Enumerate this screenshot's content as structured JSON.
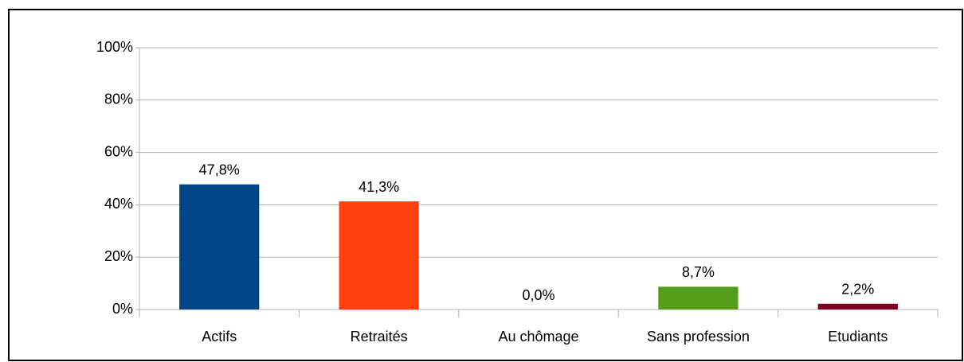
{
  "chart_data": {
    "type": "bar",
    "categories": [
      "Actifs",
      "Retraités",
      "Au chômage",
      "Sans profession",
      "Etudiants"
    ],
    "values": [
      47.8,
      41.3,
      0,
      8.7,
      2.2
    ],
    "value_labels": [
      "47,8%",
      "41,3%",
      "0,0%",
      "8,7%",
      "2,2%"
    ],
    "colors": [
      "#004586",
      "#ff420e",
      "#ffd320",
      "#579d1c",
      "#7e0021"
    ],
    "ylim": [
      0,
      100
    ],
    "yticks": [
      {
        "value": 0,
        "label": "0%"
      },
      {
        "value": 20,
        "label": "20%"
      },
      {
        "value": 40,
        "label": "40%"
      },
      {
        "value": 60,
        "label": "60%"
      },
      {
        "value": 80,
        "label": "80%"
      },
      {
        "value": 100,
        "label": "100%"
      }
    ],
    "grid": true
  }
}
